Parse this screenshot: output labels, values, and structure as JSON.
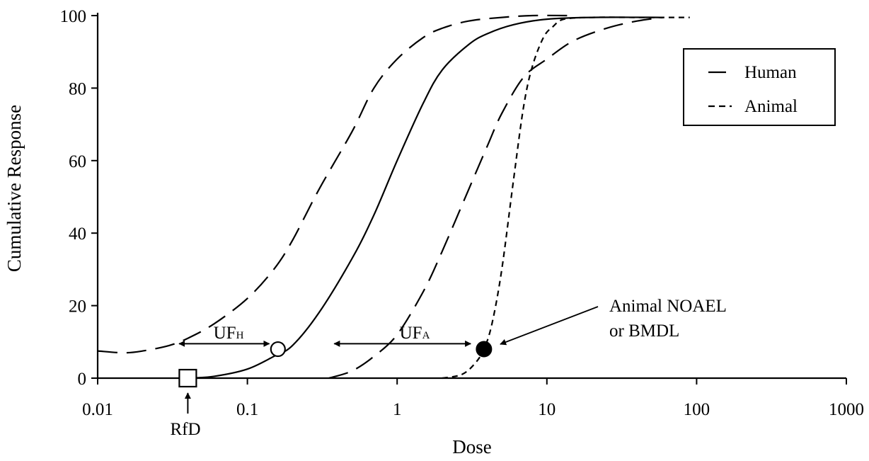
{
  "chart_data": {
    "type": "line",
    "xscale": "log",
    "xlim": [
      0.01,
      1000
    ],
    "ylim": [
      0,
      100
    ],
    "xlabel": "Dose",
    "ylabel": "Cumulative Response",
    "xticks": [
      "0.01",
      "0.1",
      "1",
      "10",
      "100",
      "1000"
    ],
    "xtick_values": [
      0.01,
      0.1,
      1,
      10,
      100,
      1000
    ],
    "yticks": [
      "0",
      "20",
      "40",
      "60",
      "80",
      "100"
    ],
    "ytick_values": [
      0,
      20,
      40,
      60,
      80,
      100
    ],
    "grid": false,
    "legend": {
      "placement": "top-right",
      "entries": [
        {
          "label": "Human",
          "style": "long-dash"
        },
        {
          "label": "Animal",
          "style": "short-dash"
        }
      ]
    },
    "series": [
      {
        "style": "solid",
        "x": [
          0.04,
          0.06,
          0.1,
          0.15,
          0.2,
          0.3,
          0.5,
          0.7,
          1.0,
          1.5,
          2.0,
          3.0,
          4.0,
          6.0,
          10,
          20,
          60
        ],
        "y": [
          0,
          0.5,
          2.5,
          6,
          9,
          18,
          33,
          45,
          60,
          76,
          85,
          92,
          95,
          97.5,
          99,
          99.5,
          99.5
        ]
      },
      {
        "style": "short-dash",
        "x": [
          2.0,
          2.7,
          3.3,
          3.8,
          4.3,
          5.0,
          6.0,
          7.0,
          8.0,
          9.5,
          11,
          13,
          20,
          40,
          90
        ],
        "y": [
          0,
          1,
          4,
          8,
          15,
          30,
          55,
          75,
          86,
          94,
          97,
          99,
          99.5,
          99.5,
          99.5
        ]
      },
      {
        "style": "long-dash",
        "x": [
          0.01,
          0.015,
          0.02,
          0.03,
          0.04,
          0.06,
          0.1,
          0.15,
          0.2,
          0.3,
          0.5,
          0.7,
          1.0,
          1.5,
          2.0,
          3.0,
          5.0,
          8.0,
          14
        ],
        "y": [
          7.5,
          7,
          7.5,
          9,
          11,
          15,
          22,
          30,
          38,
          52,
          68,
          80,
          88,
          94,
          96.5,
          98.5,
          99.5,
          100,
          100
        ]
      },
      {
        "style": "long-dash",
        "x": [
          0.35,
          0.5,
          0.7,
          1.0,
          1.5,
          2.0,
          3.0,
          4.0,
          5.0,
          7.0,
          10,
          15,
          25,
          40,
          60
        ],
        "y": [
          0,
          2,
          6,
          12,
          24,
          35,
          52,
          64,
          73,
          83,
          88,
          93,
          96.5,
          98.5,
          99.5
        ]
      }
    ],
    "markers": [
      {
        "label": "RfD",
        "shape": "open-square",
        "x": 0.04,
        "y": 0
      },
      {
        "shape": "open-circle",
        "x": 0.16,
        "y": 8
      },
      {
        "shape": "filled-circle",
        "x": 3.8,
        "y": 8
      }
    ],
    "annotations": [
      {
        "label": "UF",
        "sub": "H",
        "from": 0.035,
        "to": 0.14,
        "y": 9.5
      },
      {
        "label": "UF",
        "sub": "A",
        "from": 0.38,
        "to": 3.1,
        "y": 9.5
      },
      {
        "label": "RfD",
        "x": 0.04
      },
      {
        "line1": "Animal NOAEL",
        "line2": "or BMDL"
      }
    ]
  }
}
